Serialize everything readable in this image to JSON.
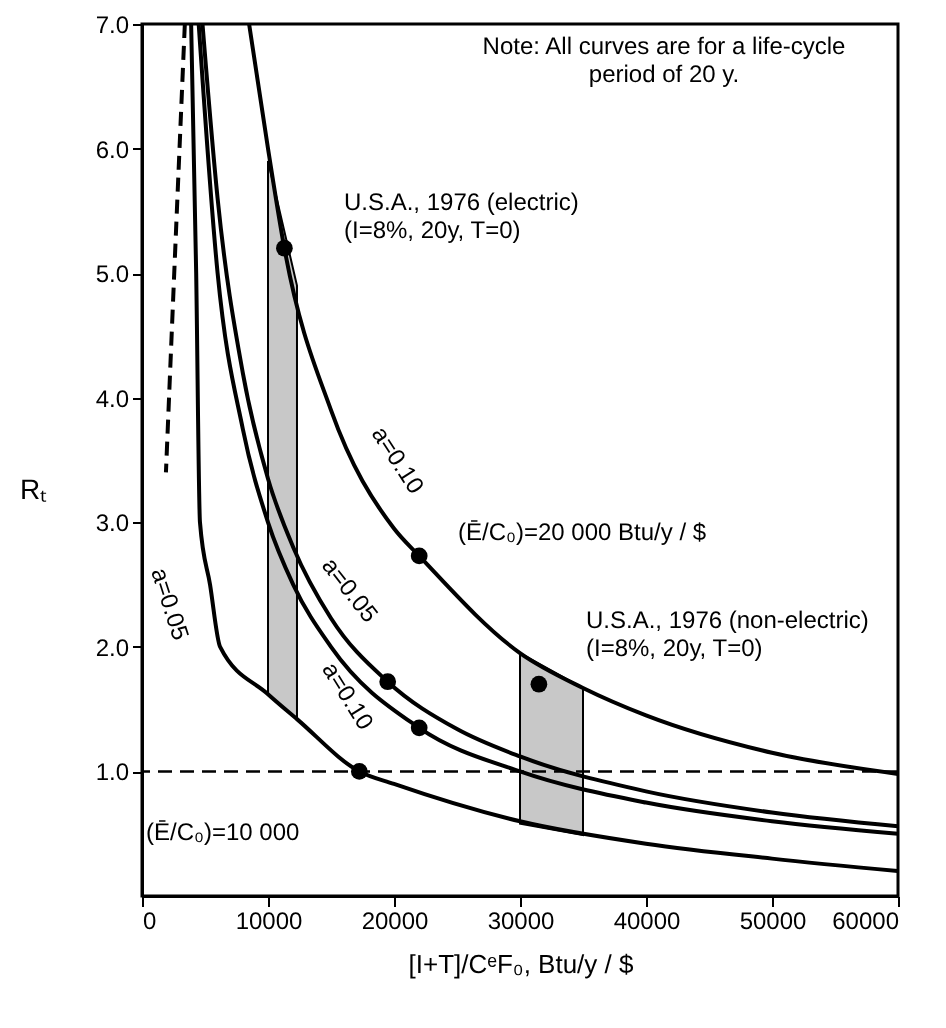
{
  "chart_data": {
    "type": "line",
    "xlabel": "[I+T]/CᵉF₀,  Btu/y / $",
    "ylabel": "Rₜ",
    "xlim": [
      0,
      60000
    ],
    "xticks": [
      0,
      10000,
      20000,
      30000,
      40000,
      50000,
      60000
    ],
    "ylim": [
      0,
      7
    ],
    "yticks": [
      {
        "value": 1,
        "label": "1.0"
      },
      {
        "value": 2,
        "label": "2.0"
      },
      {
        "value": 3,
        "label": "3.0"
      },
      {
        "value": 4,
        "label": "4.0"
      },
      {
        "value": 5,
        "label": "5.0"
      },
      {
        "value": 6,
        "label": "6.0"
      },
      {
        "value": 7,
        "label": "7.0"
      }
    ],
    "grid": false,
    "marker": "none",
    "series": [
      {
        "type": "area",
        "color": "#c8c8c8",
        "x": [
          10000,
          12300
        ],
        "values": [
          null,
          null
        ],
        "upper": [
          5.9,
          4.9
        ],
        "lower": [
          1.62,
          1.42
        ]
      },
      {
        "type": "area",
        "color": "#c8c8c8",
        "x": [
          30000,
          35000
        ],
        "values": [
          null,
          null
        ],
        "upper": [
          1.95,
          1.67
        ],
        "lower": [
          0.58,
          0.49
        ]
      },
      {
        "color": "#000000",
        "x": [
          8500,
          10000,
          11300,
          15000,
          20000,
          22000,
          30000,
          35000,
          40000,
          50000,
          60000
        ],
        "values": [
          7.0,
          6.0,
          5.2,
          3.9,
          2.95,
          2.73,
          1.95,
          1.67,
          1.45,
          1.15,
          0.98
        ]
      },
      {
        "color": "#000000",
        "x": [
          4800,
          6000,
          8000,
          10000,
          12000,
          15000,
          19500,
          25000,
          30000,
          40000,
          50000,
          60000
        ],
        "values": [
          7.0,
          5.6,
          4.2,
          3.35,
          2.8,
          2.23,
          1.72,
          1.34,
          1.12,
          0.84,
          0.67,
          0.56
        ]
      },
      {
        "color": "#000000",
        "x": [
          4500,
          6000,
          8000,
          10000,
          12000,
          15000,
          22000,
          30000,
          40000,
          50000,
          60000
        ],
        "values": [
          7.0,
          5.0,
          3.75,
          3.0,
          2.5,
          2.0,
          1.35,
          1.0,
          0.75,
          0.6,
          0.5
        ]
      },
      {
        "color": "#000000",
        "x": [
          3900,
          4300,
          4600,
          5400,
          6200,
          10000,
          12300,
          17250,
          20000,
          30000,
          40000,
          50000,
          60000
        ],
        "values": [
          7.0,
          5.0,
          3.0,
          2.5,
          2.0,
          1.62,
          1.42,
          1.0,
          0.9,
          0.6,
          0.42,
          0.3,
          0.2
        ]
      },
      {
        "color": "#000000",
        "line_style": "dashed",
        "x": [
          3400,
          2600,
          1900
        ],
        "values": [
          7.0,
          5.1,
          3.4
        ]
      },
      {
        "type": "scatter",
        "color": "#000000",
        "marker": "circle",
        "x": [
          11300,
          31500,
          22000,
          19500,
          22000,
          17250
        ],
        "values": [
          5.2,
          1.7,
          2.73,
          1.72,
          1.35,
          1.0
        ]
      }
    ],
    "ref_lines": [
      {
        "axis": "y",
        "value": 1.0,
        "color": "#000000",
        "line_style": "dashed"
      }
    ],
    "annotations": [
      "Note: All curves are for a life-cycle\nperiod of 20 y.",
      "U.S.A., 1976 (electric)\n(I=8%, 20y, T=0)",
      "(Ē/C₀)=20 000 Btu/y / $",
      "U.S.A., 1976 (non-electric)\n(I=8%, 20y, T=0)",
      "(Ē/C₀)=10 000",
      "a=0.10",
      "a=0.05",
      "a=0.10",
      "a=0.05"
    ]
  }
}
